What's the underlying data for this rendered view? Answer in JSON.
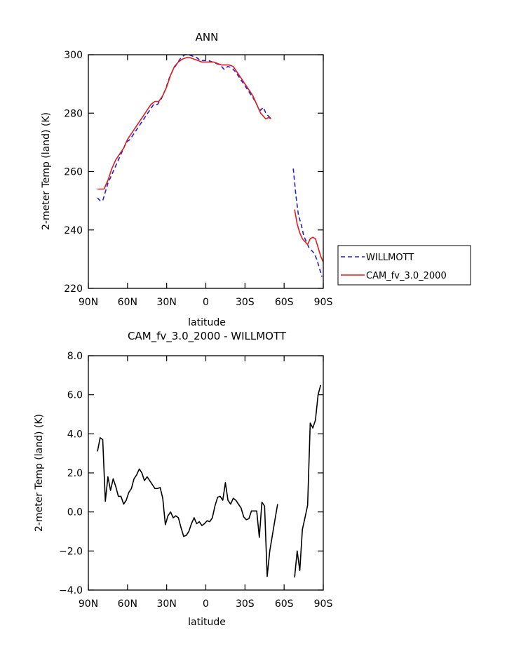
{
  "chart_data": [
    {
      "type": "line",
      "title": "ANN",
      "xlabel": "latitude",
      "ylabel": "2-meter Temp (land) (K)",
      "xlim": [
        90,
        -90
      ],
      "ylim": [
        220,
        300
      ],
      "xticks": [
        {
          "value": 90,
          "label": "90N"
        },
        {
          "value": 60,
          "label": "60N"
        },
        {
          "value": 30,
          "label": "30N"
        },
        {
          "value": 0,
          "label": "0"
        },
        {
          "value": -30,
          "label": "30S"
        },
        {
          "value": -60,
          "label": "60S"
        },
        {
          "value": -90,
          "label": "90S"
        }
      ],
      "yticks": [
        {
          "value": 220,
          "label": "220"
        },
        {
          "value": 240,
          "label": "240"
        },
        {
          "value": 260,
          "label": "260"
        },
        {
          "value": 280,
          "label": "280"
        },
        {
          "value": 300,
          "label": "300"
        }
      ],
      "legend_position": "right",
      "series": [
        {
          "name": "WILLMOTT",
          "color": "#1f1fd6",
          "dash": "dashed",
          "segments": [
            [
              [
                83,
                251
              ],
              [
                81,
                250
              ],
              [
                79,
                250
              ],
              [
                77,
                253
              ],
              [
                75,
                256
              ],
              [
                72,
                259
              ],
              [
                69,
                262
              ],
              [
                66,
                265
              ],
              [
                63,
                268
              ],
              [
                61,
                270
              ],
              [
                58,
                271
              ],
              [
                55,
                273
              ],
              [
                52,
                275
              ],
              [
                49,
                277
              ],
              [
                46,
                279
              ],
              [
                43,
                281
              ],
              [
                40,
                283
              ],
              [
                37,
                283
              ],
              [
                34,
                285
              ],
              [
                31,
                288
              ],
              [
                28,
                292
              ],
              [
                25,
                295
              ],
              [
                22,
                297
              ],
              [
                19,
                299
              ],
              [
                16,
                300
              ],
              [
                13,
                300
              ],
              [
                10,
                299.5
              ],
              [
                7,
                299
              ],
              [
                4,
                298
              ],
              [
                1,
                298
              ],
              [
                -2,
                298
              ],
              [
                -5,
                297.5
              ],
              [
                -8,
                297
              ],
              [
                -11,
                296.5
              ],
              [
                -14,
                295
              ],
              [
                -17,
                296
              ],
              [
                -20,
                295.5
              ],
              [
                -23,
                294
              ],
              [
                -26,
                292
              ],
              [
                -29,
                290
              ],
              [
                -32,
                288
              ],
              [
                -35,
                286
              ],
              [
                -38,
                284
              ],
              [
                -40,
                282
              ],
              [
                -42,
                281
              ],
              [
                -44,
                282
              ],
              [
                -46,
                280
              ],
              [
                -48,
                279
              ],
              [
                -50,
                278
              ]
            ],
            [
              [
                -67,
                261
              ],
              [
                -69,
                252
              ],
              [
                -71,
                245
              ],
              [
                -73,
                242
              ],
              [
                -75,
                238
              ],
              [
                -77,
                236
              ],
              [
                -79,
                234
              ],
              [
                -81,
                233
              ],
              [
                -83,
                232
              ],
              [
                -85,
                230
              ],
              [
                -87,
                227
              ],
              [
                -89,
                224
              ]
            ]
          ]
        },
        {
          "name": "CAM_fv_3.0_2000",
          "color": "#e01c1c",
          "dash": "solid",
          "segments": [
            [
              [
                83,
                254
              ],
              [
                81,
                254
              ],
              [
                78,
                254
              ],
              [
                75,
                257
              ],
              [
                72,
                261
              ],
              [
                69,
                264
              ],
              [
                66,
                266
              ],
              [
                63,
                268
              ],
              [
                60,
                271
              ],
              [
                57,
                273
              ],
              [
                54,
                275
              ],
              [
                51,
                277
              ],
              [
                48,
                279
              ],
              [
                45,
                281
              ],
              [
                42,
                283
              ],
              [
                39,
                284
              ],
              [
                36,
                284
              ],
              [
                33,
                286
              ],
              [
                30,
                289
              ],
              [
                27,
                293
              ],
              [
                24,
                296
              ],
              [
                21,
                297.5
              ],
              [
                18,
                298.5
              ],
              [
                15,
                299
              ],
              [
                12,
                299
              ],
              [
                9,
                298.5
              ],
              [
                6,
                298
              ],
              [
                3,
                297.5
              ],
              [
                0,
                297.5
              ],
              [
                -3,
                297.5
              ],
              [
                -6,
                297.5
              ],
              [
                -9,
                297
              ],
              [
                -12,
                296.5
              ],
              [
                -15,
                296.5
              ],
              [
                -18,
                296.5
              ],
              [
                -21,
                296
              ],
              [
                -24,
                294
              ],
              [
                -27,
                292
              ],
              [
                -30,
                290
              ],
              [
                -33,
                288
              ],
              [
                -36,
                286
              ],
              [
                -38,
                284
              ],
              [
                -40,
                282
              ],
              [
                -42,
                280
              ],
              [
                -44,
                279
              ],
              [
                -46,
                278
              ],
              [
                -48,
                278.5
              ],
              [
                -50,
                278
              ]
            ],
            [
              [
                -68,
                247
              ],
              [
                -70,
                242
              ],
              [
                -72,
                239
              ],
              [
                -74,
                237
              ],
              [
                -76,
                236
              ],
              [
                -78,
                235
              ],
              [
                -80,
                237
              ],
              [
                -82,
                237.5
              ],
              [
                -84,
                237
              ],
              [
                -86,
                234
              ],
              [
                -88,
                231
              ],
              [
                -90,
                229
              ]
            ]
          ]
        }
      ]
    },
    {
      "type": "line",
      "title": "CAM_fv_3.0_2000 - WILLMOTT",
      "xlabel": "latitude",
      "ylabel": "2-meter Temp (land) (K)",
      "xlim": [
        90,
        -90
      ],
      "ylim": [
        -4,
        8
      ],
      "xticks": [
        {
          "value": 90,
          "label": "90N"
        },
        {
          "value": 60,
          "label": "60N"
        },
        {
          "value": 30,
          "label": "30N"
        },
        {
          "value": 0,
          "label": "0"
        },
        {
          "value": -30,
          "label": "30S"
        },
        {
          "value": -60,
          "label": "60S"
        },
        {
          "value": -90,
          "label": "90S"
        }
      ],
      "yticks": [
        {
          "value": -4,
          "label": "−4.0"
        },
        {
          "value": -2,
          "label": "−2.0"
        },
        {
          "value": 0,
          "label": "0.0"
        },
        {
          "value": 2,
          "label": "2.0"
        },
        {
          "value": 4,
          "label": "4.0"
        },
        {
          "value": 6,
          "label": "6.0"
        },
        {
          "value": 8,
          "label": "8.0"
        }
      ],
      "series": [
        {
          "color": "#000000",
          "dash": "solid",
          "segments": [
            [
              [
                83,
                3.1
              ],
              [
                81,
                3.8
              ],
              [
                79,
                3.7
              ],
              [
                77,
                0.55
              ],
              [
                75,
                1.8
              ],
              [
                73,
                1.1
              ],
              [
                71,
                1.7
              ],
              [
                69,
                1.3
              ],
              [
                67,
                0.8
              ],
              [
                65,
                0.8
              ],
              [
                63,
                0.4
              ],
              [
                61,
                0.6
              ],
              [
                59,
                1.0
              ],
              [
                57,
                1.2
              ],
              [
                55,
                1.7
              ],
              [
                53,
                1.9
              ],
              [
                51,
                2.2
              ],
              [
                49,
                2.0
              ],
              [
                47,
                1.6
              ],
              [
                45,
                1.8
              ],
              [
                43,
                1.6
              ],
              [
                41,
                1.4
              ],
              [
                39,
                1.2
              ],
              [
                37,
                1.2
              ],
              [
                35,
                1.25
              ],
              [
                33,
                0.7
              ],
              [
                31,
                -0.65
              ],
              [
                29,
                -0.2
              ],
              [
                27,
                0.0
              ],
              [
                25,
                -0.3
              ],
              [
                23,
                -0.2
              ],
              [
                21,
                -0.3
              ],
              [
                19,
                -0.8
              ],
              [
                17,
                -1.25
              ],
              [
                15,
                -1.2
              ],
              [
                13,
                -1.0
              ],
              [
                11,
                -0.6
              ],
              [
                9,
                -0.3
              ],
              [
                7,
                -0.6
              ],
              [
                5,
                -0.5
              ],
              [
                3,
                -0.7
              ],
              [
                1,
                -0.6
              ],
              [
                -1,
                -0.45
              ],
              [
                -3,
                -0.5
              ],
              [
                -5,
                -0.3
              ],
              [
                -7,
                0.3
              ],
              [
                -9,
                0.75
              ],
              [
                -11,
                0.8
              ],
              [
                -13,
                0.6
              ],
              [
                -15,
                1.5
              ],
              [
                -17,
                0.6
              ],
              [
                -19,
                0.4
              ],
              [
                -21,
                0.7
              ],
              [
                -23,
                0.6
              ],
              [
                -25,
                0.4
              ],
              [
                -27,
                0.2
              ],
              [
                -29,
                -0.25
              ],
              [
                -31,
                -0.4
              ],
              [
                -33,
                -0.35
              ],
              [
                -35,
                0.05
              ],
              [
                -37,
                0.05
              ],
              [
                -39,
                0.05
              ],
              [
                -41,
                -1.3
              ],
              [
                -43,
                0.5
              ],
              [
                -45,
                0.3
              ],
              [
                -47,
                -3.3
              ],
              [
                -49,
                -2.0
              ],
              [
                -51,
                -1.2
              ],
              [
                -53,
                -0.4
              ],
              [
                -55,
                0.4
              ]
            ],
            [
              [
                -68,
                -3.35
              ],
              [
                -70,
                -2.0
              ],
              [
                -72,
                -3.0
              ],
              [
                -74,
                -0.9
              ],
              [
                -76,
                -0.3
              ],
              [
                -78,
                0.35
              ],
              [
                -80,
                4.55
              ],
              [
                -82,
                4.3
              ],
              [
                -84,
                4.7
              ],
              [
                -86,
                6.0
              ],
              [
                -88,
                6.5
              ]
            ]
          ]
        }
      ]
    }
  ]
}
